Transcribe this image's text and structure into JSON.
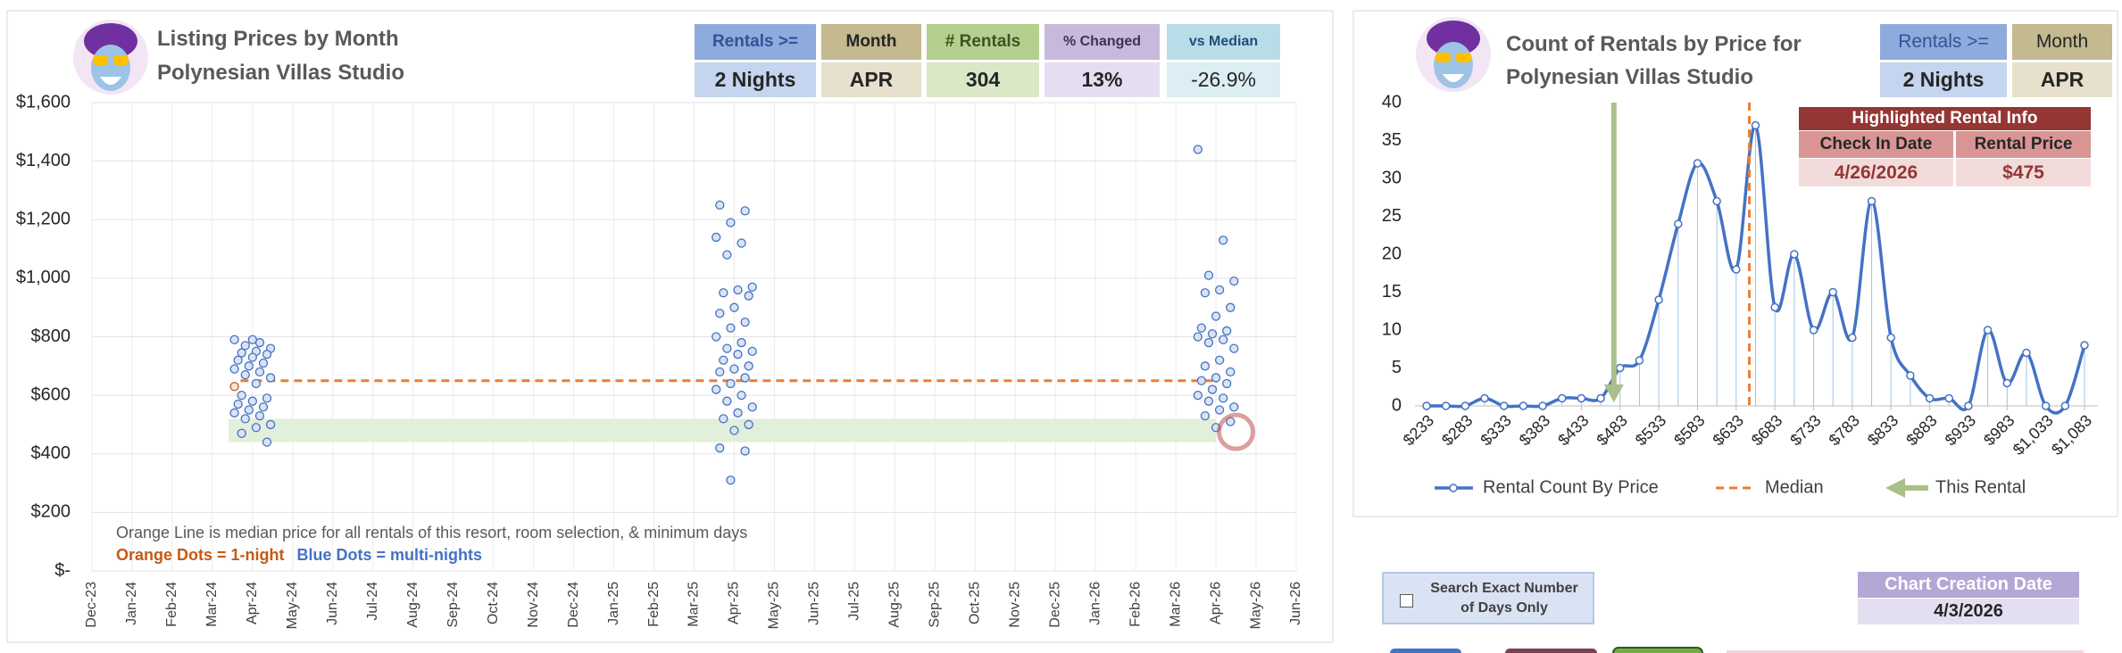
{
  "chart_data": [
    {
      "type": "scatter",
      "title": "Listing Prices by Month",
      "subtitle": "Polynesian Villas Studio",
      "xlim": [
        "2023-12",
        "2026-06"
      ],
      "xticks": [
        {
          "value": "2023-12",
          "label": "Dec-23"
        },
        {
          "value": "2024-01",
          "label": "Jan-24"
        },
        {
          "value": "2024-02",
          "label": "Feb-24"
        },
        {
          "value": "2024-03",
          "label": "Mar-24"
        },
        {
          "value": "2024-04",
          "label": "Apr-24"
        },
        {
          "value": "2024-05",
          "label": "May-24"
        },
        {
          "value": "2024-06",
          "label": "Jun-24"
        },
        {
          "value": "2024-07",
          "label": "Jul-24"
        },
        {
          "value": "2024-08",
          "label": "Aug-24"
        },
        {
          "value": "2024-09",
          "label": "Sep-24"
        },
        {
          "value": "2024-10",
          "label": "Oct-24"
        },
        {
          "value": "2024-11",
          "label": "Nov-24"
        },
        {
          "value": "2024-12",
          "label": "Dec-24"
        },
        {
          "value": "2025-01",
          "label": "Jan-25"
        },
        {
          "value": "2025-02",
          "label": "Feb-25"
        },
        {
          "value": "2025-03",
          "label": "Mar-25"
        },
        {
          "value": "2025-04",
          "label": "Apr-25"
        },
        {
          "value": "2025-05",
          "label": "May-25"
        },
        {
          "value": "2025-06",
          "label": "Jun-25"
        },
        {
          "value": "2025-07",
          "label": "Jul-25"
        },
        {
          "value": "2025-08",
          "label": "Aug-25"
        },
        {
          "value": "2025-09",
          "label": "Sep-25"
        },
        {
          "value": "2025-10",
          "label": "Oct-25"
        },
        {
          "value": "2025-11",
          "label": "Nov-25"
        },
        {
          "value": "2025-12",
          "label": "Dec-25"
        },
        {
          "value": "2026-01",
          "label": "Jan-26"
        },
        {
          "value": "2026-02",
          "label": "Feb-26"
        },
        {
          "value": "2026-03",
          "label": "Mar-26"
        },
        {
          "value": "2026-04",
          "label": "Apr-26"
        },
        {
          "value": "2026-05",
          "label": "May-26"
        },
        {
          "value": "2026-06",
          "label": "Jun-26"
        }
      ],
      "ylim": [
        0,
        1600
      ],
      "yticks": [
        {
          "value": 0,
          "label": "$-"
        },
        {
          "value": 200,
          "label": "$200"
        },
        {
          "value": 400,
          "label": "$400"
        },
        {
          "value": 600,
          "label": "$600"
        },
        {
          "value": 800,
          "label": "$800"
        },
        {
          "value": 1000,
          "label": "$1,000"
        },
        {
          "value": 1200,
          "label": "$1,200"
        },
        {
          "value": 1400,
          "label": "$1,400"
        },
        {
          "value": 1600,
          "label": "$1,600"
        }
      ],
      "grid": true,
      "series": [
        {
          "color": "#4472c4",
          "fill": "#dae3f3",
          "x": [
            "2024-04",
            "2024-04",
            "2024-04",
            "2024-04",
            "2024-04",
            "2024-04",
            "2024-04",
            "2024-04",
            "2024-04",
            "2024-04",
            "2024-04",
            "2024-04",
            "2024-04",
            "2024-04",
            "2024-04",
            "2024-04",
            "2024-04",
            "2024-04",
            "2024-04",
            "2024-04",
            "2024-04",
            "2024-04",
            "2024-04",
            "2024-04",
            "2024-04",
            "2024-04",
            "2024-04",
            "2024-04",
            "2024-04",
            "2024-04",
            "2025-04",
            "2025-04",
            "2025-04",
            "2025-04",
            "2025-04",
            "2025-04",
            "2025-04",
            "2025-04",
            "2025-04",
            "2025-04",
            "2025-04",
            "2025-04",
            "2025-04",
            "2025-04",
            "2025-04",
            "2025-04",
            "2025-04",
            "2025-04",
            "2025-04",
            "2025-04",
            "2025-04",
            "2025-04",
            "2025-04",
            "2025-04",
            "2025-04",
            "2025-04",
            "2025-04",
            "2025-04",
            "2025-04",
            "2025-04",
            "2025-04",
            "2025-04",
            "2025-04",
            "2025-04",
            "2025-04",
            "2025-04",
            "2026-04",
            "2026-04",
            "2026-04",
            "2026-04",
            "2026-04",
            "2026-04",
            "2026-04",
            "2026-04",
            "2026-04",
            "2026-04",
            "2026-04",
            "2026-04",
            "2026-04",
            "2026-04",
            "2026-04",
            "2026-04",
            "2026-04",
            "2026-04",
            "2026-04",
            "2026-04",
            "2026-04",
            "2026-04",
            "2026-04",
            "2026-04",
            "2026-04",
            "2026-04",
            "2026-04",
            "2026-04",
            "2026-04",
            "2026-04"
          ],
          "values": [
            790,
            780,
            770,
            760,
            750,
            745,
            740,
            730,
            720,
            710,
            700,
            690,
            680,
            670,
            660,
            640,
            600,
            590,
            580,
            570,
            560,
            550,
            540,
            530,
            520,
            500,
            490,
            470,
            440,
            790,
            1250,
            1230,
            1190,
            1140,
            1120,
            1080,
            970,
            960,
            950,
            940,
            900,
            880,
            850,
            830,
            800,
            780,
            760,
            750,
            740,
            720,
            700,
            690,
            680,
            660,
            640,
            620,
            600,
            580,
            560,
            540,
            520,
            500,
            480,
            420,
            410,
            310,
            1440,
            1130,
            1010,
            990,
            960,
            950,
            900,
            870,
            830,
            820,
            810,
            800,
            790,
            780,
            760,
            720,
            700,
            680,
            660,
            650,
            640,
            620,
            600,
            590,
            580,
            560,
            550,
            530,
            510,
            490
          ]
        },
        {
          "color": "#c55a11",
          "fill": "#fbe5d6",
          "x": [
            "2024-04"
          ],
          "values": [
            630
          ]
        }
      ],
      "median": {
        "value": 650,
        "x": [
          "2024-04",
          "2026-04"
        ],
        "color": "#ed7d31"
      },
      "band": {
        "y": [
          440,
          520
        ],
        "x": [
          "2024-04",
          "2026-04"
        ],
        "color": "#e2efda"
      },
      "highlight_point": {
        "x": "2026-04",
        "y": 475,
        "color": "#c0504d"
      },
      "annotations": [
        "Orange Line is median price for all rentals of this resort, room selection, & minimum days",
        "Orange Dots = 1-night",
        "Blue Dots = multi-nights"
      ]
    },
    {
      "type": "line",
      "title": "Count of Rentals by Price for",
      "subtitle": "Polynesian Villas Studio",
      "x": [
        233,
        258,
        283,
        308,
        333,
        358,
        383,
        408,
        433,
        458,
        483,
        508,
        533,
        558,
        583,
        608,
        633,
        658,
        683,
        708,
        733,
        758,
        783,
        808,
        833,
        858,
        883,
        908,
        933,
        958,
        983,
        1008,
        1033,
        1058,
        1083
      ],
      "xlim": [
        233,
        1083
      ],
      "xticks": [
        {
          "value": 233,
          "label": "$233"
        },
        {
          "value": 283,
          "label": "$283"
        },
        {
          "value": 333,
          "label": "$333"
        },
        {
          "value": 383,
          "label": "$383"
        },
        {
          "value": 433,
          "label": "$433"
        },
        {
          "value": 483,
          "label": "$483"
        },
        {
          "value": 533,
          "label": "$533"
        },
        {
          "value": 583,
          "label": "$583"
        },
        {
          "value": 633,
          "label": "$633"
        },
        {
          "value": 683,
          "label": "$683"
        },
        {
          "value": 733,
          "label": "$733"
        },
        {
          "value": 783,
          "label": "$783"
        },
        {
          "value": 833,
          "label": "$833"
        },
        {
          "value": 883,
          "label": "$883"
        },
        {
          "value": 933,
          "label": "$933"
        },
        {
          "value": 983,
          "label": "$983"
        },
        {
          "value": 1033,
          "label": "$1,033"
        },
        {
          "value": 1083,
          "label": "$1,083"
        }
      ],
      "ylim": [
        0,
        40
      ],
      "yticks": [
        0,
        5,
        10,
        15,
        20,
        25,
        30,
        35,
        40
      ],
      "series": [
        {
          "name": "Rental Count By Price",
          "color": "#4472c4",
          "values": [
            0,
            0,
            0,
            1,
            0,
            0,
            0,
            1,
            1,
            1,
            5,
            6,
            14,
            24,
            32,
            27,
            18,
            37,
            13,
            20,
            10,
            15,
            9,
            27,
            9,
            4,
            1,
            1,
            0,
            10,
            3,
            7,
            0,
            0,
            8
          ]
        }
      ],
      "median": {
        "name": "Median",
        "value": 650,
        "color": "#ed7d31"
      },
      "marker": {
        "name": "This Rental",
        "value": 475,
        "color": "#a9c08a"
      }
    }
  ],
  "summary": {
    "headers": [
      "Rentals >=",
      "Month",
      "# Rentals",
      "% Changed",
      "vs Median"
    ],
    "values": [
      "2 Nights",
      "APR",
      "304",
      "13%",
      "-26.9%"
    ]
  },
  "right_summary": {
    "headers": [
      "Rentals >=",
      "Month"
    ],
    "values": [
      "2 Nights",
      "APR"
    ]
  },
  "highlight": {
    "title": "Highlighted Rental Info",
    "headers": [
      "Check In Date",
      "Rental Price"
    ],
    "values": [
      "4/26/2026",
      "$475"
    ]
  },
  "search_option": "Search Exact Number of Days Only",
  "creation": {
    "label": "Chart Creation Date",
    "value": "4/3/2026"
  }
}
